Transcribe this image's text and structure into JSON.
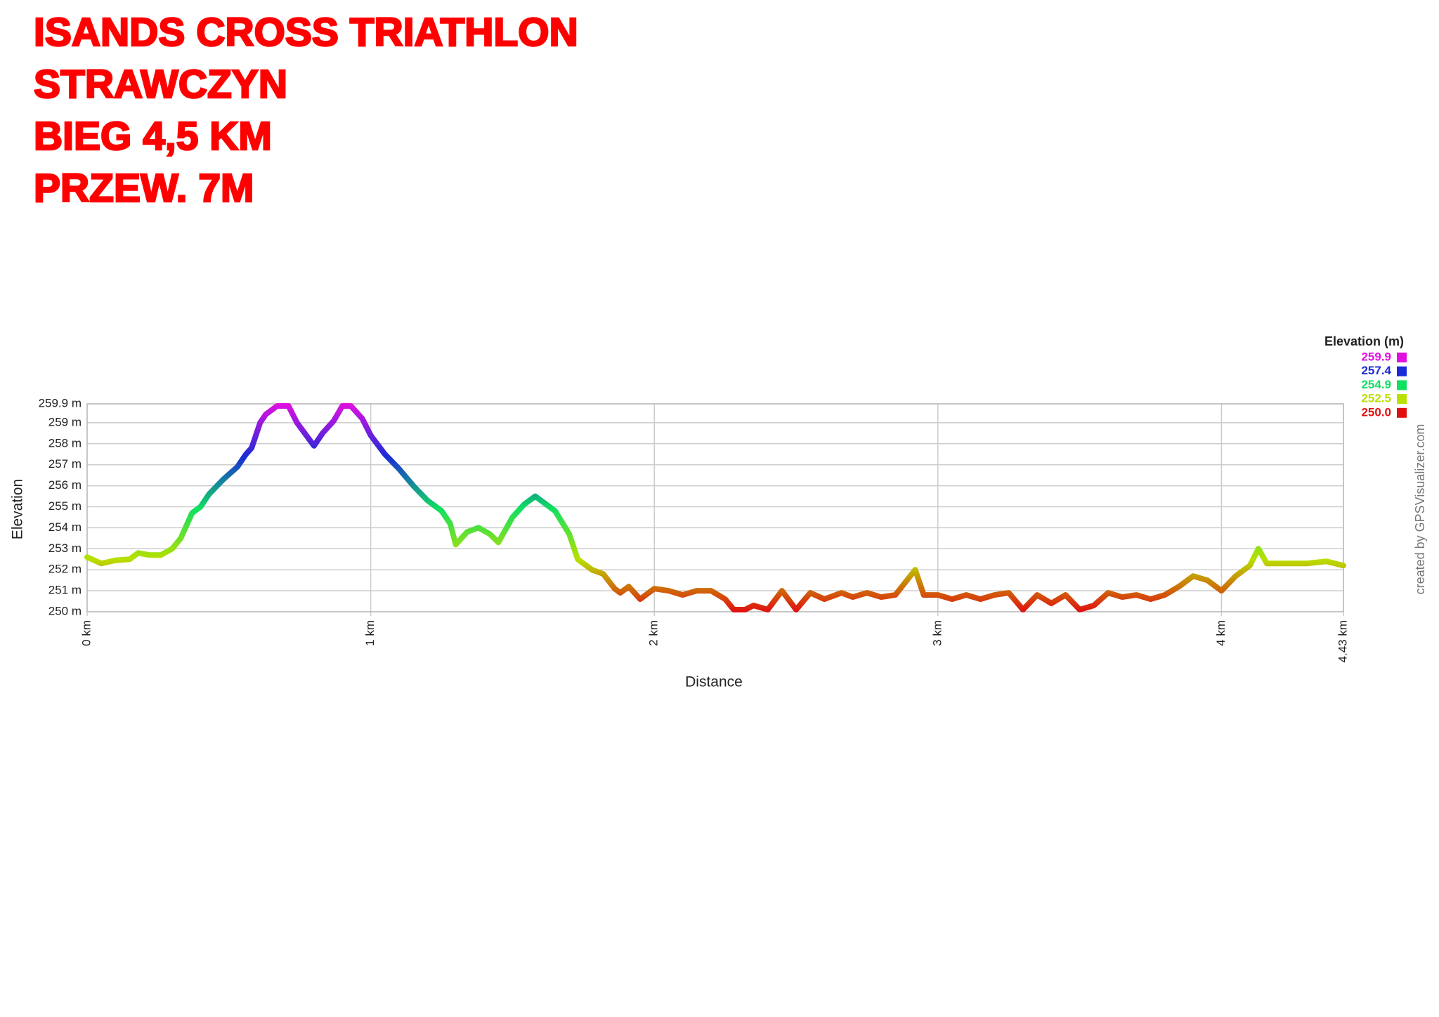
{
  "title_lines": [
    "ISANDS CROSS TRIATHLON",
    "STRAWCZYN",
    "BIEG 4,5 KM",
    "PRZEW. 7M"
  ],
  "watermark": "created by GPSVisualizer.com",
  "chart_data": {
    "type": "line",
    "x_label": "Distance",
    "y_label": "Elevation",
    "x": [
      0,
      0.05,
      0.1,
      0.15,
      0.18,
      0.22,
      0.26,
      0.3,
      0.33,
      0.37,
      0.4,
      0.43,
      0.48,
      0.53,
      0.56,
      0.58,
      0.61,
      0.63,
      0.67,
      0.71,
      0.74,
      0.8,
      0.83,
      0.87,
      0.9,
      0.93,
      0.97,
      1.0,
      1.05,
      1.1,
      1.15,
      1.2,
      1.25,
      1.28,
      1.3,
      1.34,
      1.38,
      1.42,
      1.45,
      1.5,
      1.54,
      1.58,
      1.62,
      1.65,
      1.7,
      1.73,
      1.78,
      1.82,
      1.86,
      1.88,
      1.91,
      1.95,
      2.0,
      2.05,
      2.1,
      2.15,
      2.2,
      2.25,
      2.28,
      2.32,
      2.35,
      2.4,
      2.45,
      2.5,
      2.55,
      2.6,
      2.66,
      2.7,
      2.75,
      2.8,
      2.85,
      2.92,
      2.95,
      3.0,
      3.05,
      3.1,
      3.15,
      3.2,
      3.25,
      3.3,
      3.35,
      3.4,
      3.45,
      3.5,
      3.55,
      3.6,
      3.65,
      3.7,
      3.75,
      3.8,
      3.85,
      3.9,
      3.95,
      4.0,
      4.05,
      4.1,
      4.13,
      4.16,
      4.2,
      4.3,
      4.37,
      4.43
    ],
    "series": [
      {
        "name": "Elevation (m)",
        "values": [
          252.6,
          252.3,
          252.45,
          252.5,
          252.8,
          252.7,
          252.7,
          253.0,
          253.5,
          254.7,
          255.0,
          255.6,
          256.3,
          256.9,
          257.5,
          257.8,
          259.0,
          259.4,
          259.8,
          259.8,
          259.0,
          257.9,
          258.5,
          259.1,
          259.8,
          259.8,
          259.2,
          258.4,
          257.5,
          256.8,
          256.0,
          255.3,
          254.8,
          254.2,
          253.2,
          253.8,
          254.0,
          253.7,
          253.3,
          254.5,
          255.1,
          255.5,
          255.1,
          254.8,
          253.7,
          252.5,
          252.0,
          251.8,
          251.1,
          250.9,
          251.2,
          250.6,
          251.1,
          251.0,
          250.8,
          251.0,
          251.0,
          250.6,
          250.1,
          250.1,
          250.3,
          250.1,
          251.0,
          250.1,
          250.9,
          250.6,
          250.9,
          250.7,
          250.9,
          250.7,
          250.8,
          252.0,
          250.8,
          250.8,
          250.6,
          250.8,
          250.6,
          250.8,
          250.9,
          250.1,
          250.8,
          250.4,
          250.8,
          250.1,
          250.3,
          250.9,
          250.7,
          250.8,
          250.6,
          250.8,
          251.2,
          251.7,
          251.5,
          251.0,
          251.7,
          252.2,
          253.0,
          252.3,
          252.3,
          252.3,
          252.4,
          252.2
        ]
      }
    ],
    "xlim": [
      0,
      4.43
    ],
    "xticks": [
      {
        "value": 0,
        "label": "0 km"
      },
      {
        "value": 1,
        "label": "1 km"
      },
      {
        "value": 2,
        "label": "2 km"
      },
      {
        "value": 3,
        "label": "3 km"
      },
      {
        "value": 4,
        "label": "4 km"
      },
      {
        "value": 4.43,
        "label": "4.43 km"
      }
    ],
    "ylim": [
      250,
      259.9
    ],
    "yticks": [
      {
        "value": 250,
        "label": "250 m"
      },
      {
        "value": 251,
        "label": "251 m"
      },
      {
        "value": 252,
        "label": "252 m"
      },
      {
        "value": 253,
        "label": "253 m"
      },
      {
        "value": 254,
        "label": "254 m"
      },
      {
        "value": 255,
        "label": "255 m"
      },
      {
        "value": 256,
        "label": "256 m"
      },
      {
        "value": 257,
        "label": "257 m"
      },
      {
        "value": 258,
        "label": "258 m"
      },
      {
        "value": 259,
        "label": "259 m"
      },
      {
        "value": 259.9,
        "label": "259.9 m"
      }
    ],
    "grid": true,
    "legend_title": "Elevation (m)",
    "color_scale": [
      {
        "value": 259.9,
        "color": "#e010e0"
      },
      {
        "value": 257.4,
        "color": "#1a2ad8"
      },
      {
        "value": 254.9,
        "color": "#10e060"
      },
      {
        "value": 252.5,
        "color": "#b8e000"
      },
      {
        "value": 250,
        "label": "250.0",
        "color": "#e01010"
      }
    ]
  }
}
